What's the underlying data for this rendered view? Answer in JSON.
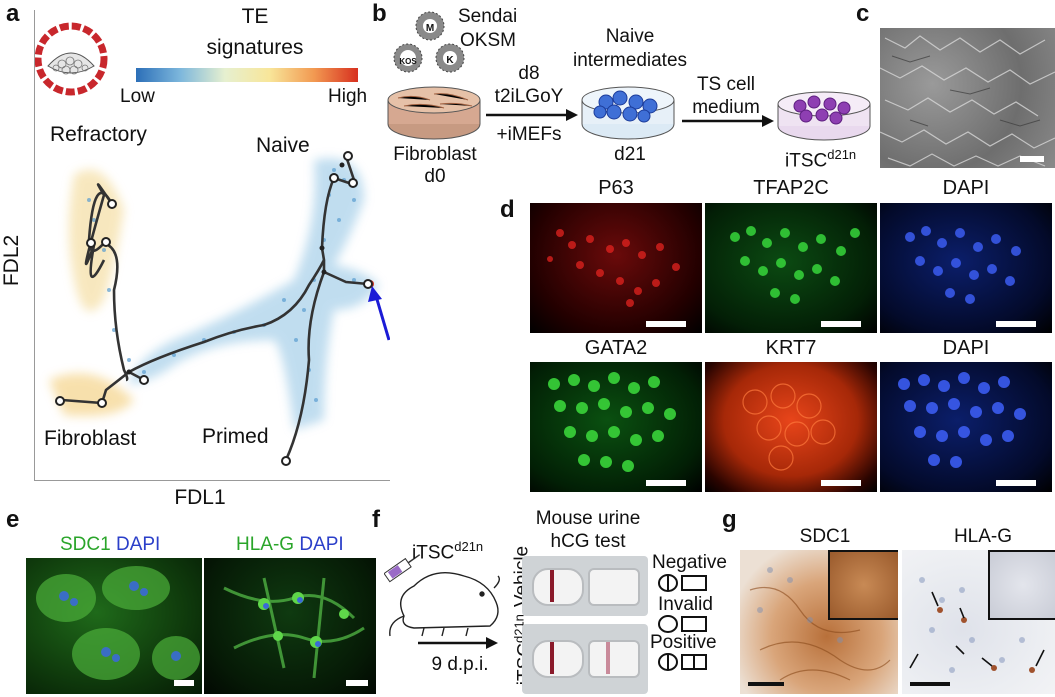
{
  "panels": {
    "a": "a",
    "b": "b",
    "c": "c",
    "d": "d",
    "e": "e",
    "f": "f",
    "g": "g"
  },
  "a": {
    "colorbar_title_1": "TE",
    "colorbar_title_2": "signatures",
    "colorbar_low": "Low",
    "colorbar_high": "High",
    "labels": {
      "refractory": "Refractory",
      "naive": "Naive",
      "fibroblast": "Fibroblast",
      "primed": "Primed"
    },
    "xlabel": "FDL1",
    "ylabel": "FDL2",
    "colors": {
      "arrow": "#1b1bd6",
      "low": "#2c6fb8",
      "high": "#d7301f"
    }
  },
  "b": {
    "sendai": "Sendai",
    "oksm": "OKSM",
    "virus_m": "M",
    "virus_kos": "KOS",
    "virus_k": "K",
    "fibroblast": "Fibroblast",
    "d0": "d0",
    "step1_a": "d8",
    "step1_b": "t2iLGoY",
    "step1_c": "+iMEFs",
    "naive_1": "Naive",
    "naive_2": "intermediates",
    "d21": "d21",
    "step2_a": "TS cell",
    "step2_b": "medium",
    "itsc": "iTSC",
    "itsc_sup": "d21n"
  },
  "d": {
    "row1": [
      "P63",
      "TFAP2C",
      "DAPI"
    ],
    "row2": [
      "GATA2",
      "KRT7",
      "DAPI"
    ]
  },
  "e": {
    "left_marker": "SDC1",
    "left_dapi": "DAPI",
    "right_marker": "HLA-G",
    "right_dapi": "DAPI"
  },
  "f": {
    "itsc": "iTSC",
    "itsc_sup": "d21n",
    "dpi": "9 d.p.i.",
    "title_1": "Mouse urine",
    "title_2": "hCG test",
    "vehicle": "Vehicle",
    "itsc_row": "iTSC",
    "itsc_row_sup": "d21n",
    "negative": "Negative",
    "invalid": "Invalid",
    "positive": "Positive"
  },
  "g": {
    "left": "SDC1",
    "right": "HLA-G"
  }
}
